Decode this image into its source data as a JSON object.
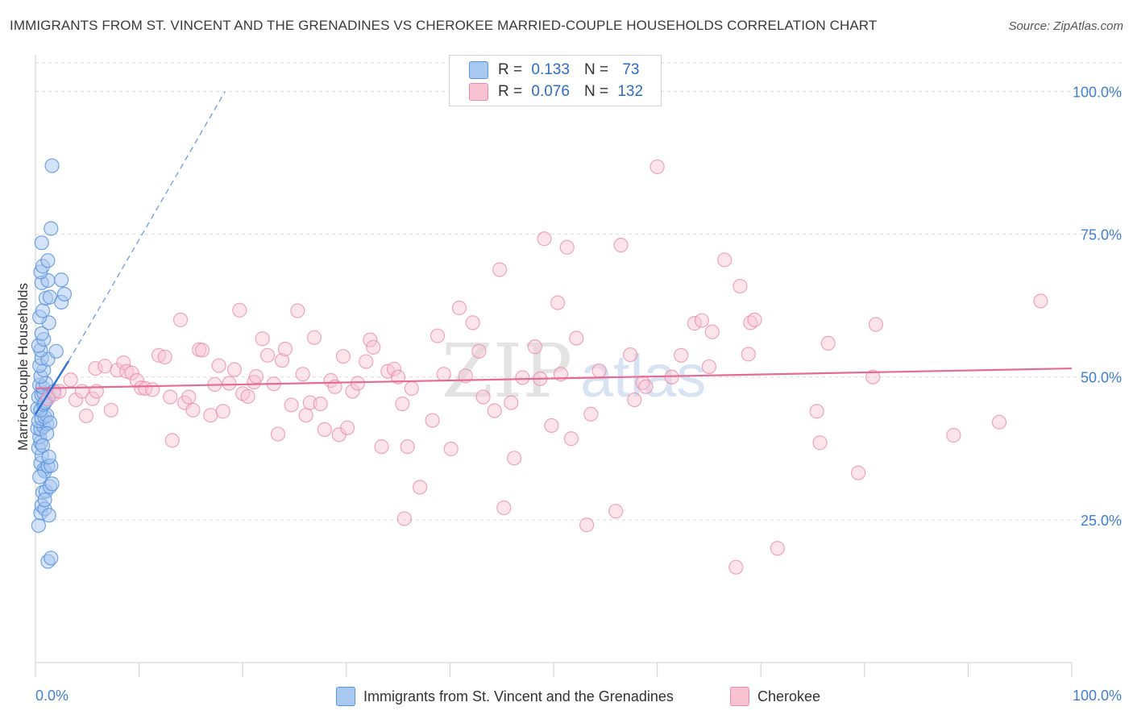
{
  "title": "IMMIGRANTS FROM ST. VINCENT AND THE GRENADINES VS CHEROKEE MARRIED-COUPLE HOUSEHOLDS CORRELATION CHART",
  "source": "Source: ZipAtlas.com",
  "watermark": {
    "zip": "ZIP",
    "atlas": "atlas"
  },
  "legend": {
    "rows": [
      {
        "r_label": "R =",
        "r_value": "0.133",
        "n_label": "N =",
        "n_value": "73"
      },
      {
        "r_label": "R =",
        "r_value": "0.076",
        "n_label": "N =",
        "n_value": "132"
      }
    ]
  },
  "bottom_legend": {
    "series1": "Immigrants from St. Vincent and the Grenadines",
    "series2": "Cherokee"
  },
  "chart_data": {
    "type": "scatter",
    "title": "IMMIGRANTS FROM ST. VINCENT AND THE GRENADINES VS CHEROKEE MARRIED-COUPLE HOUSEHOLDS CORRELATION CHART",
    "xlabel": "",
    "ylabel": "Married-couple Households",
    "xlim": [
      0,
      100
    ],
    "ylim": [
      0,
      105
    ],
    "x_tick_labels": [
      "0.0%",
      "100.0%"
    ],
    "y_tick_values": [
      25,
      50,
      75,
      100
    ],
    "y_tick_labels": [
      "25.0%",
      "50.0%",
      "75.0%",
      "100.0%"
    ],
    "grid": true,
    "legend_position": "top-center",
    "colors": {
      "series1_fill": "#a9c8f0",
      "series1_stroke": "#5b93dd",
      "series1_line": "#2f6fd0",
      "series2_fill": "#f8c3d3",
      "series2_stroke": "#e88aa8",
      "series2_line": "#e56b95",
      "tick_label": "#3f7fd0",
      "grid": "#d9d9d9"
    },
    "series": [
      {
        "name": "Immigrants from St. Vincent and the Grenadines",
        "r": 0.133,
        "n": 73,
        "trend": {
          "x": [
            0,
            3.2
          ],
          "y": [
            43.5,
            52.8
          ]
        },
        "trend_extension": {
          "x": [
            3.2,
            18.3
          ],
          "y": [
            52.8,
            100
          ]
        },
        "points": [
          [
            0.3,
            24.0
          ],
          [
            0.5,
            26.2
          ],
          [
            0.6,
            27.5
          ],
          [
            0.9,
            26.9
          ],
          [
            1.3,
            25.8
          ],
          [
            1.2,
            17.7
          ],
          [
            1.5,
            18.3
          ],
          [
            0.7,
            29.8
          ],
          [
            1.0,
            30.0
          ],
          [
            1.4,
            30.8
          ],
          [
            1.6,
            31.3
          ],
          [
            0.5,
            34.9
          ],
          [
            0.8,
            33.8
          ],
          [
            0.9,
            33.5
          ],
          [
            1.2,
            34.4
          ],
          [
            1.5,
            34.5
          ],
          [
            0.6,
            36.3
          ],
          [
            0.3,
            37.6
          ],
          [
            0.5,
            38.5
          ],
          [
            0.4,
            39.5
          ],
          [
            0.2,
            41.0
          ],
          [
            0.5,
            40.9
          ],
          [
            0.8,
            41.3
          ],
          [
            1.1,
            41.8
          ],
          [
            0.3,
            42.3
          ],
          [
            0.6,
            42.7
          ],
          [
            0.9,
            43.0
          ],
          [
            1.1,
            43.3
          ],
          [
            1.4,
            42.0
          ],
          [
            0.2,
            44.5
          ],
          [
            0.5,
            44.2
          ],
          [
            0.8,
            45.2
          ],
          [
            1.0,
            45.8
          ],
          [
            0.3,
            46.5
          ],
          [
            0.6,
            46.9
          ],
          [
            0.8,
            47.2
          ],
          [
            1.3,
            46.6
          ],
          [
            0.4,
            48.6
          ],
          [
            0.7,
            48.2
          ],
          [
            1.0,
            48.9
          ],
          [
            0.5,
            50.1
          ],
          [
            0.8,
            51.2
          ],
          [
            0.4,
            52.0
          ],
          [
            0.6,
            53.3
          ],
          [
            1.2,
            53.1
          ],
          [
            0.5,
            54.7
          ],
          [
            0.3,
            55.5
          ],
          [
            0.8,
            56.6
          ],
          [
            0.6,
            57.6
          ],
          [
            1.3,
            59.5
          ],
          [
            0.4,
            60.5
          ],
          [
            0.7,
            61.6
          ],
          [
            1.0,
            63.8
          ],
          [
            1.4,
            64.0
          ],
          [
            2.5,
            63.1
          ],
          [
            2.8,
            64.5
          ],
          [
            0.6,
            66.5
          ],
          [
            1.2,
            66.9
          ],
          [
            2.5,
            67.0
          ],
          [
            0.5,
            68.4
          ],
          [
            0.7,
            69.4
          ],
          [
            1.2,
            70.4
          ],
          [
            0.6,
            73.5
          ],
          [
            1.5,
            76.0
          ],
          [
            1.6,
            87.0
          ],
          [
            1.8,
            47.5
          ],
          [
            0.9,
            45.5
          ],
          [
            1.1,
            40.1
          ],
          [
            0.7,
            38.0
          ],
          [
            1.3,
            36.0
          ],
          [
            0.4,
            32.5
          ],
          [
            0.9,
            28.5
          ],
          [
            2.0,
            54.5
          ]
        ]
      },
      {
        "name": "Cherokee",
        "r": 0.076,
        "n": 132,
        "trend": {
          "x": [
            0,
            100
          ],
          "y": [
            48.0,
            51.5
          ]
        },
        "points": [
          [
            1.2,
            46.2
          ],
          [
            1.8,
            47.0
          ],
          [
            2.3,
            47.5
          ],
          [
            3.4,
            49.5
          ],
          [
            3.9,
            46.0
          ],
          [
            4.5,
            47.5
          ],
          [
            4.9,
            43.2
          ],
          [
            5.5,
            46.2
          ],
          [
            5.9,
            47.5
          ],
          [
            5.8,
            51.5
          ],
          [
            6.7,
            51.9
          ],
          [
            7.3,
            44.2
          ],
          [
            7.9,
            51.2
          ],
          [
            8.5,
            52.5
          ],
          [
            8.8,
            51.0
          ],
          [
            9.3,
            50.7
          ],
          [
            9.8,
            49.4
          ],
          [
            10.2,
            48.1
          ],
          [
            10.6,
            48.0
          ],
          [
            11.3,
            47.8
          ],
          [
            11.9,
            53.8
          ],
          [
            12.5,
            53.5
          ],
          [
            13.0,
            46.5
          ],
          [
            13.2,
            38.9
          ],
          [
            14.0,
            60.0
          ],
          [
            14.4,
            45.5
          ],
          [
            14.8,
            46.5
          ],
          [
            15.2,
            44.2
          ],
          [
            15.8,
            54.8
          ],
          [
            16.1,
            54.7
          ],
          [
            16.9,
            43.3
          ],
          [
            17.3,
            48.7
          ],
          [
            17.7,
            52.0
          ],
          [
            18.1,
            44.0
          ],
          [
            18.7,
            48.9
          ],
          [
            19.2,
            51.3
          ],
          [
            19.7,
            61.7
          ],
          [
            20.0,
            47.1
          ],
          [
            20.5,
            46.6
          ],
          [
            21.1,
            49.1
          ],
          [
            21.3,
            50.1
          ],
          [
            21.9,
            56.7
          ],
          [
            22.4,
            53.8
          ],
          [
            23.0,
            48.8
          ],
          [
            23.4,
            40.0
          ],
          [
            23.8,
            52.9
          ],
          [
            24.1,
            54.9
          ],
          [
            24.7,
            45.1
          ],
          [
            25.3,
            61.6
          ],
          [
            25.8,
            50.5
          ],
          [
            26.1,
            43.3
          ],
          [
            26.5,
            45.5
          ],
          [
            26.9,
            56.9
          ],
          [
            27.5,
            45.3
          ],
          [
            27.9,
            40.8
          ],
          [
            28.5,
            49.4
          ],
          [
            28.9,
            48.3
          ],
          [
            29.3,
            39.9
          ],
          [
            29.7,
            53.6
          ],
          [
            30.1,
            41.1
          ],
          [
            30.6,
            47.5
          ],
          [
            31.1,
            48.9
          ],
          [
            31.9,
            52.7
          ],
          [
            32.3,
            56.5
          ],
          [
            32.6,
            55.2
          ],
          [
            33.4,
            37.8
          ],
          [
            34.0,
            51.0
          ],
          [
            34.6,
            51.4
          ],
          [
            35.0,
            50.0
          ],
          [
            35.4,
            45.3
          ],
          [
            35.6,
            25.2
          ],
          [
            35.9,
            37.8
          ],
          [
            36.3,
            48.0
          ],
          [
            37.1,
            30.7
          ],
          [
            38.3,
            42.4
          ],
          [
            38.8,
            57.2
          ],
          [
            39.4,
            50.5
          ],
          [
            40.1,
            37.4
          ],
          [
            40.9,
            62.1
          ],
          [
            41.5,
            50.2
          ],
          [
            42.2,
            59.5
          ],
          [
            42.8,
            54.5
          ],
          [
            43.2,
            46.5
          ],
          [
            44.3,
            44.1
          ],
          [
            44.8,
            68.8
          ],
          [
            45.2,
            27.1
          ],
          [
            45.9,
            45.5
          ],
          [
            46.2,
            35.8
          ],
          [
            47.0,
            49.9
          ],
          [
            48.2,
            55.3
          ],
          [
            48.7,
            49.7
          ],
          [
            49.1,
            74.2
          ],
          [
            49.8,
            41.5
          ],
          [
            50.4,
            63.0
          ],
          [
            50.7,
            50.5
          ],
          [
            51.3,
            72.7
          ],
          [
            51.7,
            39.2
          ],
          [
            52.2,
            56.8
          ],
          [
            53.2,
            24.1
          ],
          [
            53.6,
            43.5
          ],
          [
            54.4,
            51.1
          ],
          [
            56.0,
            26.5
          ],
          [
            56.5,
            73.1
          ],
          [
            57.4,
            53.9
          ],
          [
            57.8,
            46.0
          ],
          [
            58.6,
            49.0
          ],
          [
            60.0,
            86.8
          ],
          [
            61.4,
            50.0
          ],
          [
            62.3,
            53.8
          ],
          [
            63.6,
            59.4
          ],
          [
            64.3,
            59.9
          ],
          [
            65.0,
            51.8
          ],
          [
            65.3,
            57.9
          ],
          [
            66.5,
            70.5
          ],
          [
            67.6,
            16.7
          ],
          [
            68.0,
            65.9
          ],
          [
            68.8,
            54.0
          ],
          [
            69.0,
            59.5
          ],
          [
            69.4,
            60.0
          ],
          [
            71.6,
            20.0
          ],
          [
            75.4,
            44.0
          ],
          [
            75.7,
            38.5
          ],
          [
            76.5,
            55.9
          ],
          [
            79.4,
            33.2
          ],
          [
            80.8,
            50.0
          ],
          [
            81.1,
            59.2
          ],
          [
            88.6,
            39.8
          ],
          [
            93.0,
            42.1
          ],
          [
            97.0,
            63.3
          ],
          [
            58.9,
            48.3
          ]
        ]
      }
    ]
  }
}
